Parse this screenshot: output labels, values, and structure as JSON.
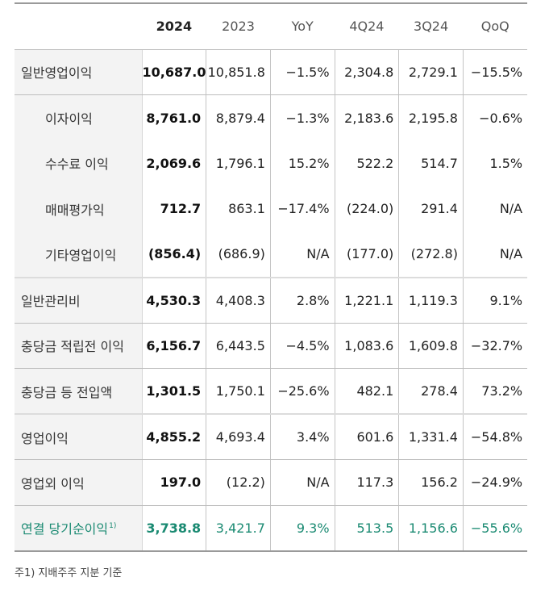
{
  "table": {
    "columns": [
      "",
      "2024",
      "2023",
      "YoY",
      "4Q24",
      "3Q24",
      "QoQ"
    ],
    "rows": [
      {
        "label": "일반영업이익",
        "indent": false,
        "values": [
          "10,687.0",
          "10,851.8",
          "−1.5%",
          "2,304.8",
          "2,729.1",
          "−15.5%"
        ]
      },
      {
        "label": "이자이익",
        "indent": true,
        "values": [
          "8,761.0",
          "8,879.4",
          "−1.3%",
          "2,183.6",
          "2,195.8",
          "−0.6%"
        ]
      },
      {
        "label": "수수료 이익",
        "indent": true,
        "values": [
          "2,069.6",
          "1,796.1",
          "15.2%",
          "522.2",
          "514.7",
          "1.5%"
        ]
      },
      {
        "label": "매매평가익",
        "indent": true,
        "values": [
          "712.7",
          "863.1",
          "−17.4%",
          "(224.0)",
          "291.4",
          "N/A"
        ]
      },
      {
        "label": "기타영업이익",
        "indent": true,
        "values": [
          "(856.4)",
          "(686.9)",
          "N/A",
          "(177.0)",
          "(272.8)",
          "N/A"
        ]
      },
      {
        "label": "일반관리비",
        "indent": false,
        "values": [
          "4,530.3",
          "4,408.3",
          "2.8%",
          "1,221.1",
          "1,119.3",
          "9.1%"
        ]
      },
      {
        "label": "충당금 적립전 이익",
        "indent": false,
        "values": [
          "6,156.7",
          "6,443.5",
          "−4.5%",
          "1,083.6",
          "1,609.8",
          "−32.7%"
        ]
      },
      {
        "label": "충당금 등 전입액",
        "indent": false,
        "values": [
          "1,301.5",
          "1,750.1",
          "−25.6%",
          "482.1",
          "278.4",
          "73.2%"
        ]
      },
      {
        "label": "영업이익",
        "indent": false,
        "values": [
          "4,855.2",
          "4,693.4",
          "3.4%",
          "601.6",
          "1,331.4",
          "−54.8%"
        ]
      },
      {
        "label": "영업외 이익",
        "indent": false,
        "values": [
          "197.0",
          "(12.2)",
          "N/A",
          "117.3",
          "156.2",
          "−24.9%"
        ]
      },
      {
        "label": "연결 당기순이익",
        "label_sup": "1)",
        "indent": false,
        "highlight": true,
        "values": [
          "3,738.8",
          "3,421.7",
          "9.3%",
          "513.5",
          "1,156.6",
          "−55.6%"
        ]
      }
    ]
  },
  "footnote": "주1) 지배주주 지분 기준",
  "colors": {
    "highlight": "#1a8a72",
    "label_bg": "#f3f3f3"
  }
}
